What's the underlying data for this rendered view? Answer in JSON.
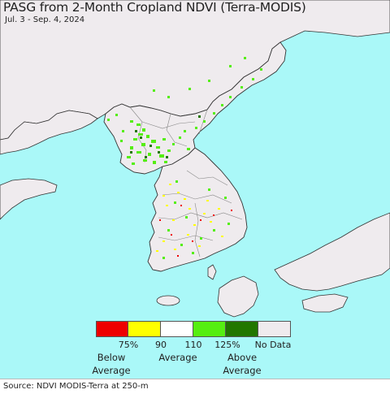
{
  "title": "PASG from 2-Month Cropland NDVI (Terra-MODIS)",
  "date_range": "Jul. 3 - Sep. 4, 2024",
  "colors": {
    "sea": "#aaf8f8",
    "land": "#efebee",
    "border": "#333333",
    "province_border": "#888888"
  },
  "legend": {
    "swatches": [
      {
        "name": "below-75",
        "color": "#ee0000"
      },
      {
        "name": "75-90",
        "color": "#ffff00"
      },
      {
        "name": "90-110",
        "color": "#ffffff"
      },
      {
        "name": "110-125",
        "color": "#55ee11"
      },
      {
        "name": "above-125",
        "color": "#227700"
      },
      {
        "name": "no-data",
        "color": "#efebee"
      }
    ],
    "ticks": [
      "75%",
      "90",
      "110",
      "125%"
    ],
    "no_data_label": "No Data",
    "below_label_1": "Below",
    "below_label_2": "Average",
    "average_label": "Average",
    "above_label_1": "Above",
    "above_label_2": "Average"
  },
  "source": "Source: NDVI MODIS-Terra at 250-m"
}
